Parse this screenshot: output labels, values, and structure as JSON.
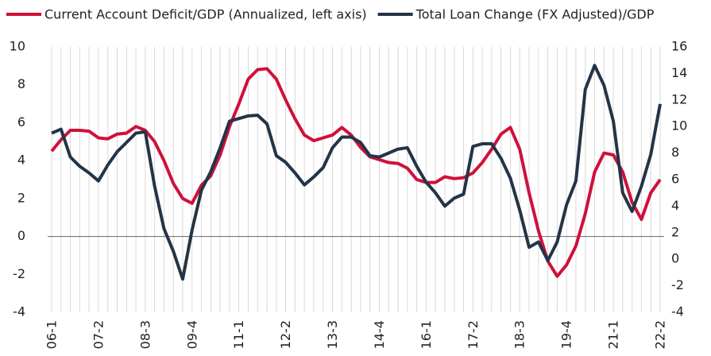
{
  "chart_data": {
    "type": "line",
    "categories": [
      "06-1",
      null,
      null,
      null,
      null,
      "07-2",
      null,
      null,
      null,
      null,
      "08-3",
      null,
      null,
      null,
      null,
      "09-4",
      null,
      null,
      null,
      null,
      "11-1",
      null,
      null,
      null,
      null,
      "12-2",
      null,
      null,
      null,
      null,
      "13-3",
      null,
      null,
      null,
      null,
      "14-4",
      null,
      null,
      null,
      null,
      "16-1",
      null,
      null,
      null,
      null,
      "17-2",
      null,
      null,
      null,
      null,
      "18-3",
      null,
      null,
      null,
      null,
      "19-4",
      null,
      null,
      null,
      null,
      "21-1",
      null,
      null,
      null,
      null,
      "22-2"
    ],
    "series": [
      {
        "name": "Current Account Deficit/GDP (Annualized, left axis)",
        "color": "#d0103a",
        "values": [
          4.5,
          5.1,
          5.6,
          5.6,
          5.55,
          5.2,
          5.15,
          5.4,
          5.45,
          5.8,
          5.6,
          5.0,
          4.0,
          2.8,
          2.0,
          1.75,
          2.7,
          3.2,
          4.3,
          5.8,
          7.0,
          8.3,
          8.8,
          8.85,
          8.3,
          7.2,
          6.2,
          5.35,
          5.05,
          5.2,
          5.35,
          5.75,
          5.35,
          4.7,
          4.2,
          4.05,
          3.9,
          3.85,
          3.6,
          3.0,
          2.85,
          2.85,
          3.15,
          3.05,
          3.1,
          3.35,
          3.9,
          4.6,
          5.4,
          5.75,
          4.6,
          2.3,
          0.3,
          -1.3,
          -2.1,
          -1.5,
          -0.5,
          1.2,
          3.4,
          4.4,
          4.3,
          3.4,
          1.8,
          0.9,
          2.3,
          3.0
        ]
      },
      {
        "name": "Total Loan Change (FX Adjusted)/GDP",
        "color": "#243447",
        "axis": "y2",
        "values": [
          9.5,
          9.8,
          7.7,
          7.0,
          6.5,
          5.9,
          7.1,
          8.1,
          8.8,
          9.5,
          9.6,
          5.5,
          2.3,
          0.6,
          -1.5,
          2.2,
          5.2,
          6.6,
          8.4,
          10.4,
          10.6,
          10.8,
          10.85,
          10.2,
          7.8,
          7.3,
          6.5,
          5.6,
          6.2,
          6.9,
          8.4,
          9.2,
          9.2,
          8.8,
          7.8,
          7.7,
          8.0,
          8.3,
          8.4,
          7.0,
          5.8,
          5.0,
          4.0,
          4.6,
          4.9,
          8.5,
          8.7,
          8.7,
          7.6,
          6.1,
          3.7,
          0.9,
          1.3,
          -0.1,
          1.3,
          4.1,
          5.9,
          12.8,
          14.6,
          13.1,
          10.4,
          5.0,
          3.6,
          5.5,
          7.9,
          11.7
        ]
      }
    ],
    "ylim": [
      -4,
      10
    ],
    "yticks": [
      -4,
      -2,
      0,
      2,
      4,
      6,
      8,
      10
    ],
    "y2lim": [
      -4,
      16
    ],
    "y2ticks": [
      -4,
      -2,
      0,
      2,
      4,
      6,
      8,
      10,
      12,
      14,
      16
    ],
    "grid": true
  }
}
